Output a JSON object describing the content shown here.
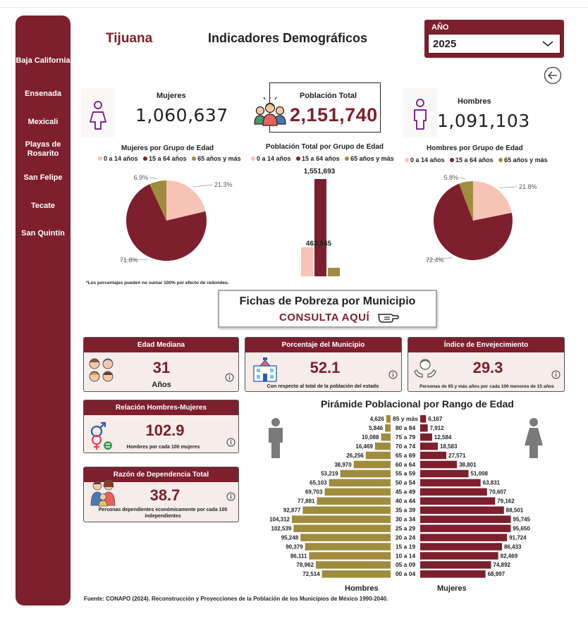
{
  "sidebar": {
    "items": [
      "Baja California",
      "Ensenada",
      "Mexicali",
      "Playas de Rosarito",
      "San Felipe",
      "Tecate",
      "San Quintín"
    ]
  },
  "header": {
    "city": "Tijuana",
    "title": "Indicadores Demográficos"
  },
  "year_filter": {
    "label": "AÑO",
    "value": "2025"
  },
  "kpis": {
    "women": {
      "label": "Mujeres",
      "value": "1,060,637"
    },
    "total": {
      "label": "Población Total",
      "value": "2,151,740"
    },
    "men": {
      "label": "Hombres",
      "value": "1,091,103"
    }
  },
  "legend": {
    "a": "0 a 14 años",
    "b": "15 a 64 años",
    "c": "65 años y más"
  },
  "colors": {
    "primary": "#7d1f2c",
    "pink": "#f7c3b5",
    "gold": "#a08c3e",
    "card_bg": "#f6ecea"
  },
  "chart_data": [
    {
      "type": "pie",
      "title": "Mujeres por Grupo de Edad",
      "categories": [
        "0 a 14 años",
        "15 a 64 años",
        "65 años y más"
      ],
      "values": [
        21.3,
        71.8,
        6.9
      ],
      "labels": [
        "21.3%",
        "71.8%",
        "6.9%"
      ],
      "legend_position": "top"
    },
    {
      "type": "bar",
      "title": "Población Total por Grupo de Edad",
      "categories": [
        "0 a 14 años",
        "15 a 64 años",
        "65 años y más"
      ],
      "values": [
        463945,
        1551693,
        136102
      ],
      "labels": [
        "463,945",
        "1,551,693",
        ""
      ],
      "legend_position": "top"
    },
    {
      "type": "pie",
      "title": "Hombres por Grupo de Edad",
      "categories": [
        "0 a 14 años",
        "15 a 64 años",
        "65 años y más"
      ],
      "values": [
        21.8,
        72.4,
        5.8
      ],
      "labels": [
        "21.8%",
        "72.4%",
        "5.8%"
      ],
      "legend_position": "top"
    },
    {
      "type": "bar",
      "title": "Pirámide Poblacional por Rango de Edad",
      "categories": [
        "85 y más",
        "80 a 84",
        "75 a 79",
        "70 a 74",
        "65 a 69",
        "60 a 64",
        "55 a 59",
        "50 a 54",
        "45 a 49",
        "40 a 44",
        "35 a 39",
        "30 a 34",
        "25 a 29",
        "20 a 24",
        "15 a 19",
        "10 a 14",
        "05 a 09",
        "00 a 04"
      ],
      "series": [
        {
          "name": "Hombres",
          "values": [
            4626,
            5846,
            10088,
            16469,
            26256,
            38970,
            53219,
            65103,
            69703,
            77881,
            92877,
            104312,
            102539,
            95248,
            90379,
            86111,
            78962,
            72514
          ],
          "labels": [
            "4,626",
            "5,846",
            "10,088",
            "16,469",
            "26,256",
            "38,970",
            "53,219",
            "65,103",
            "69,703",
            "77,881",
            "92,877",
            "104,312",
            "102,539",
            "95,248",
            "90,379",
            "86,111",
            "78,962",
            "72,514"
          ]
        },
        {
          "name": "Mujeres",
          "values": [
            6167,
            7912,
            12584,
            18583,
            27571,
            38801,
            51008,
            63831,
            70607,
            79162,
            88501,
            95745,
            95650,
            91724,
            86433,
            82469,
            74892,
            68997
          ],
          "labels": [
            "6,167",
            "7,912",
            "12,584",
            "18,583",
            "27,571",
            "38,801",
            "51,008",
            "63,831",
            "70,607",
            "79,162",
            "88,501",
            "95,745",
            "95,650",
            "91,724",
            "86,433",
            "82,469",
            "74,892",
            "68,997"
          ]
        }
      ]
    }
  ],
  "note": "*Los porcentajes pueden no sumar 100% por efecto de redondeo.",
  "fichas": {
    "title": "Fichas de Pobreza por Municipio",
    "cta": "CONSULTA AQUÍ"
  },
  "cards": {
    "mediana": {
      "title": "Edad Mediana",
      "value": "31",
      "sub": "Años"
    },
    "porcentaje": {
      "title": "Porcentaje del Municipio",
      "value": "52.1",
      "sub": "Con respecto al total de la población del estado"
    },
    "envejecimiento": {
      "title": "Índice de Envejecimiento",
      "value": "29.3",
      "sub": "Personas  de 65 y más años por cada 100 menores de 15 años"
    },
    "relacion": {
      "title": "Relación Hombres-Mujeres",
      "value": "102.9",
      "sub": "Hombres por cada 100 mujeres"
    },
    "dependencia": {
      "title": "Razón de Dependencia Total",
      "value": "38.7",
      "sub": "Personas dependientes económicamente por cada 100 independientes"
    }
  },
  "pyramid": {
    "men_label": "Hombres",
    "women_label": "Mujeres"
  },
  "source": "Fuente: CONAPO (2024). Reconstrucción y Proyecciones de la Población de los Municipios de México 1990-2040."
}
